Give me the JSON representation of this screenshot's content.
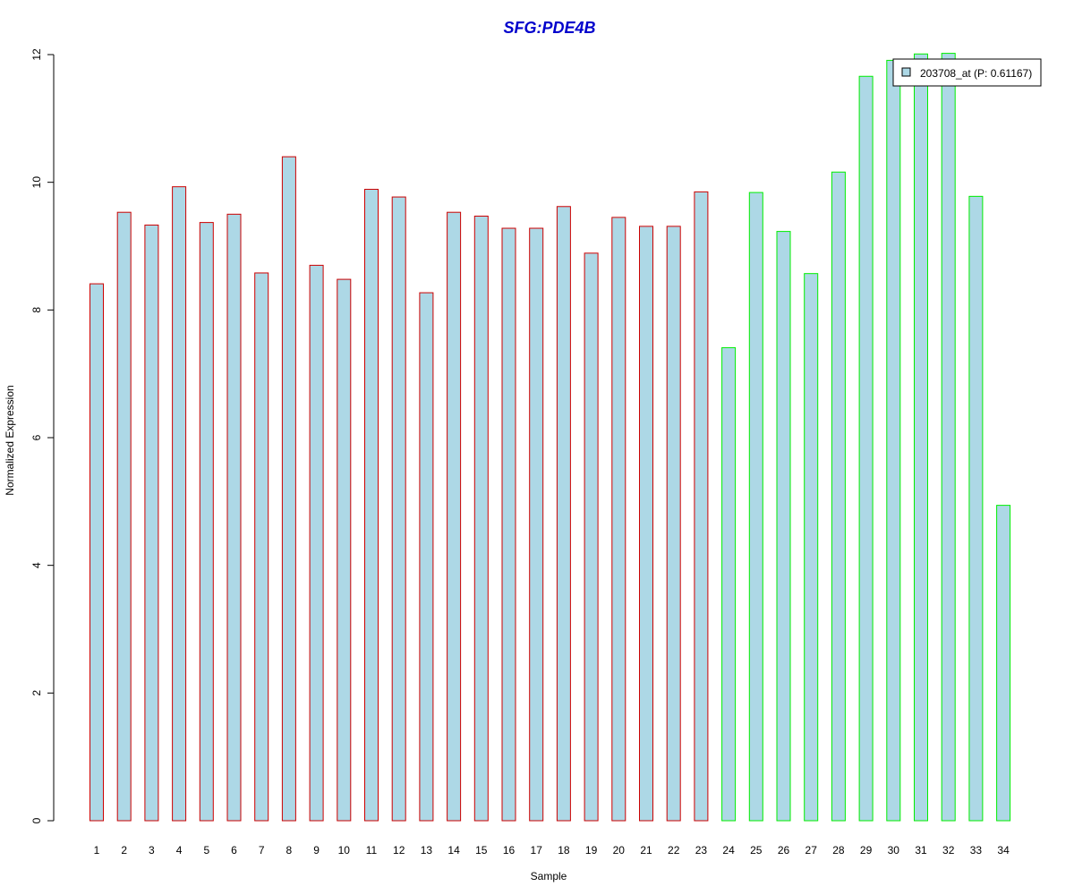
{
  "chart_data": {
    "type": "bar",
    "title": "SFG:PDE4B",
    "xlabel": "Sample",
    "ylabel": "Normalized Expression",
    "ylim": [
      0,
      12
    ],
    "yticks": [
      0,
      2,
      4,
      6,
      8,
      10,
      12
    ],
    "categories": [
      "1",
      "2",
      "3",
      "4",
      "5",
      "6",
      "7",
      "8",
      "9",
      "10",
      "11",
      "12",
      "13",
      "14",
      "15",
      "16",
      "17",
      "18",
      "19",
      "20",
      "21",
      "22",
      "23",
      "24",
      "25",
      "26",
      "27",
      "28",
      "29",
      "30",
      "31",
      "32",
      "33",
      "34"
    ],
    "series": [
      {
        "name": "203708_at (P: 0.61167)",
        "values": [
          8.41,
          9.53,
          9.33,
          9.93,
          9.37,
          9.5,
          8.58,
          10.4,
          8.7,
          8.48,
          9.89,
          9.77,
          8.27,
          9.53,
          9.47,
          9.28,
          9.28,
          9.62,
          8.89,
          9.45,
          9.31,
          9.31,
          9.85,
          7.41,
          9.84,
          9.23,
          8.57,
          10.16,
          11.66,
          11.91,
          12.01,
          12.02,
          9.78,
          4.94
        ]
      }
    ],
    "groups": [
      {
        "from": 1,
        "to": 23,
        "border_color": "#cc0000"
      },
      {
        "from": 24,
        "to": 34,
        "border_color": "#00ee00"
      }
    ],
    "bar_fill": "#add8e6",
    "legend": {
      "placement": "top-right",
      "label": "203708_at (P: 0.61167)"
    },
    "grid": false
  }
}
